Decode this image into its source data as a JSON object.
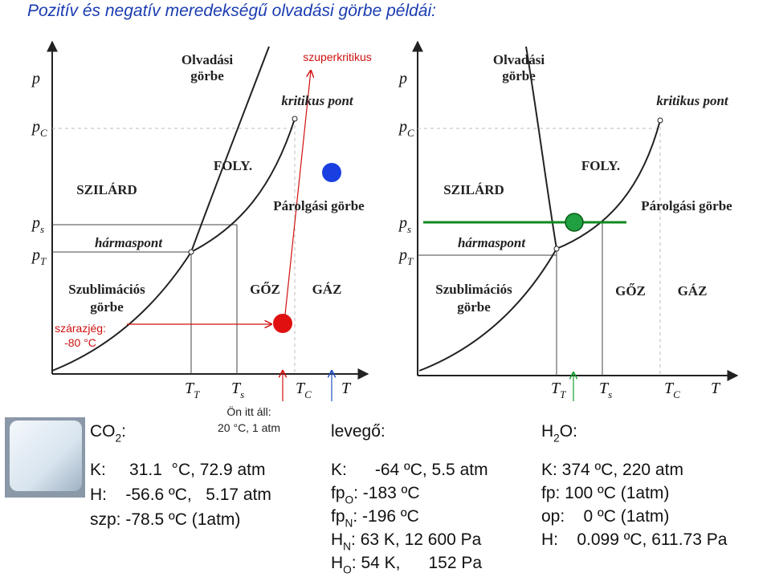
{
  "title": "Pozitív és negatív meredekségű olvadási görbe példái:",
  "left_diagram": {
    "y_labels": [
      {
        "main": "p"
      },
      {
        "main": "p",
        "sub": "C"
      },
      {
        "main": "p",
        "sub": "s"
      },
      {
        "main": "p",
        "sub": "T"
      }
    ],
    "x_labels": [
      {
        "main": "T",
        "sub": "T"
      },
      {
        "main": "T",
        "sub": "s"
      },
      {
        "main": "T",
        "sub": "C"
      },
      {
        "main": "T"
      }
    ],
    "regions": [
      "SZILÁRD",
      "FOLY.",
      "GŐZ",
      "GÁZ"
    ],
    "curve_labels": {
      "melting": [
        "Olvadási",
        "görbe"
      ],
      "critical_point": "kritikus pont",
      "evaporation": "Párolgási görbe",
      "triple_point": "hármaspont",
      "sublimation": [
        "Szublimációs",
        "görbe"
      ]
    },
    "annotations": {
      "supercritical": "szuperkritikus",
      "dry_ice": [
        "szárazjég:",
        "-80 °C"
      ],
      "you_are_here": [
        "Ön itt áll:",
        "20 °C, 1 atm"
      ]
    }
  },
  "right_diagram": {
    "y_labels": [
      {
        "main": "p"
      },
      {
        "main": "p",
        "sub": "C"
      },
      {
        "main": "p",
        "sub": "s"
      },
      {
        "main": "p",
        "sub": "T"
      }
    ],
    "x_labels": [
      {
        "main": "T",
        "sub": "T"
      },
      {
        "main": "T",
        "sub": "s"
      },
      {
        "main": "T",
        "sub": "C"
      },
      {
        "main": "T"
      }
    ],
    "regions": [
      "SZILÁRD",
      "FOLY.",
      "GŐZ",
      "GÁZ"
    ],
    "curve_labels": {
      "melting": [
        "Olvadási",
        "görbe"
      ],
      "critical_point": "kritikus pont",
      "evaporation": "Párolgási görbe",
      "triple_point": "hármaspont",
      "sublimation": [
        "Szublimációs",
        "görbe"
      ]
    }
  },
  "co2": {
    "label": {
      "main": "CO",
      "sub": "2",
      "rest": ":"
    },
    "lines": [
      "K:     31.1  °C, 72.9 atm",
      "H:    -56.6 ºC,   5.17 atm",
      "szp: -78.5 ºC (1atm)"
    ]
  },
  "air": {
    "label": "levegő:",
    "lines": [
      "K:      -64 ºC, 5.5 atm",
      {
        "main": "fp",
        "sub": "O",
        "rest": ": -183 ºC"
      },
      {
        "main": "fp",
        "sub": "N",
        "rest": ": -196 ºC"
      },
      {
        "main": "H",
        "sub": "N",
        "rest": ": 63 K, 12 600 Pa"
      },
      {
        "main": "H",
        "sub": "O",
        "rest": ": 54 K,      152 Pa"
      }
    ]
  },
  "water": {
    "label": {
      "main": "H",
      "sub": "2",
      "rest": "O:"
    },
    "lines": [
      "K: 374 ºC, 220 atm",
      "fp: 100 ºC (1atm)",
      "op:    0 ºC (1atm)",
      "H:    0.099 ºC, 611.73 Pa"
    ]
  }
}
